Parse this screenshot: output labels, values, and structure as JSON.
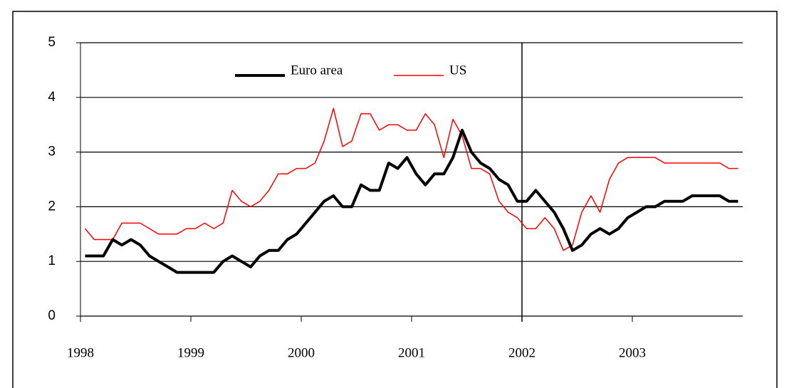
{
  "chart_data": {
    "type": "line",
    "x": [
      1998.042,
      1998.125,
      1998.208,
      1998.292,
      1998.375,
      1998.458,
      1998.542,
      1998.625,
      1998.708,
      1998.792,
      1998.875,
      1998.958,
      1999.042,
      1999.125,
      1999.208,
      1999.292,
      1999.375,
      1999.458,
      1999.542,
      1999.625,
      1999.708,
      1999.792,
      1999.875,
      1999.958,
      2000.042,
      2000.125,
      2000.208,
      2000.292,
      2000.375,
      2000.458,
      2000.542,
      2000.625,
      2000.708,
      2000.792,
      2000.875,
      2000.958,
      2001.042,
      2001.125,
      2001.208,
      2001.292,
      2001.375,
      2001.458,
      2001.542,
      2001.625,
      2001.708,
      2001.792,
      2001.875,
      2001.958,
      2002.042,
      2002.125,
      2002.208,
      2002.292,
      2002.375,
      2002.458,
      2002.542,
      2002.625,
      2002.708,
      2002.792,
      2002.875,
      2002.958,
      2003.042,
      2003.125,
      2003.208,
      2003.292,
      2003.375,
      2003.458,
      2003.542,
      2003.625,
      2003.708,
      2003.792,
      2003.875,
      2003.958
    ],
    "series": [
      {
        "name": "Euro area",
        "color": "#000000",
        "width": 4,
        "values": [
          1.1,
          1.1,
          1.1,
          1.4,
          1.3,
          1.4,
          1.3,
          1.1,
          1.0,
          0.9,
          0.8,
          0.8,
          0.8,
          0.8,
          0.8,
          1.0,
          1.1,
          1.0,
          0.9,
          1.1,
          1.2,
          1.2,
          1.4,
          1.5,
          1.7,
          1.9,
          2.1,
          2.2,
          2.0,
          2.0,
          2.4,
          2.3,
          2.3,
          2.8,
          2.7,
          2.9,
          2.6,
          2.4,
          2.6,
          2.6,
          2.9,
          3.4,
          3.0,
          2.8,
          2.7,
          2.5,
          2.4,
          2.1,
          2.1,
          2.3,
          2.1,
          1.9,
          1.6,
          1.2,
          1.3,
          1.5,
          1.6,
          1.5,
          1.6,
          1.8,
          1.9,
          2.0,
          2.0,
          2.1,
          2.1,
          2.1,
          2.2,
          2.2,
          2.2,
          2.2,
          2.1,
          2.1
        ]
      },
      {
        "name": "US",
        "color": "#ff0000",
        "width": 1.5,
        "values": [
          1.6,
          1.4,
          1.4,
          1.4,
          1.7,
          1.7,
          1.7,
          1.6,
          1.5,
          1.5,
          1.5,
          1.6,
          1.6,
          1.7,
          1.6,
          1.7,
          2.3,
          2.1,
          2.0,
          2.1,
          2.3,
          2.6,
          2.6,
          2.7,
          2.7,
          2.8,
          3.2,
          3.8,
          3.1,
          3.2,
          3.7,
          3.7,
          3.4,
          3.5,
          3.5,
          3.4,
          3.4,
          3.7,
          3.5,
          2.9,
          3.6,
          3.3,
          2.7,
          2.7,
          2.6,
          2.1,
          1.9,
          1.8,
          1.6,
          1.6,
          1.8,
          1.6,
          1.2,
          1.3,
          1.9,
          2.2,
          1.9,
          2.5,
          2.8,
          2.9,
          2.9,
          2.9,
          2.9,
          2.8,
          2.8,
          2.8,
          2.8,
          2.8,
          2.8,
          2.8,
          2.7,
          2.7
        ]
      }
    ],
    "xlim": [
      1998,
      2004
    ],
    "xticks": [
      1998,
      1999,
      2000,
      2001,
      2002,
      2003
    ],
    "ylim": [
      0,
      5
    ],
    "yticks": [
      0,
      1,
      2,
      3,
      4,
      5
    ],
    "vlines": [
      2002
    ],
    "grid": true,
    "legend": "top-center"
  }
}
